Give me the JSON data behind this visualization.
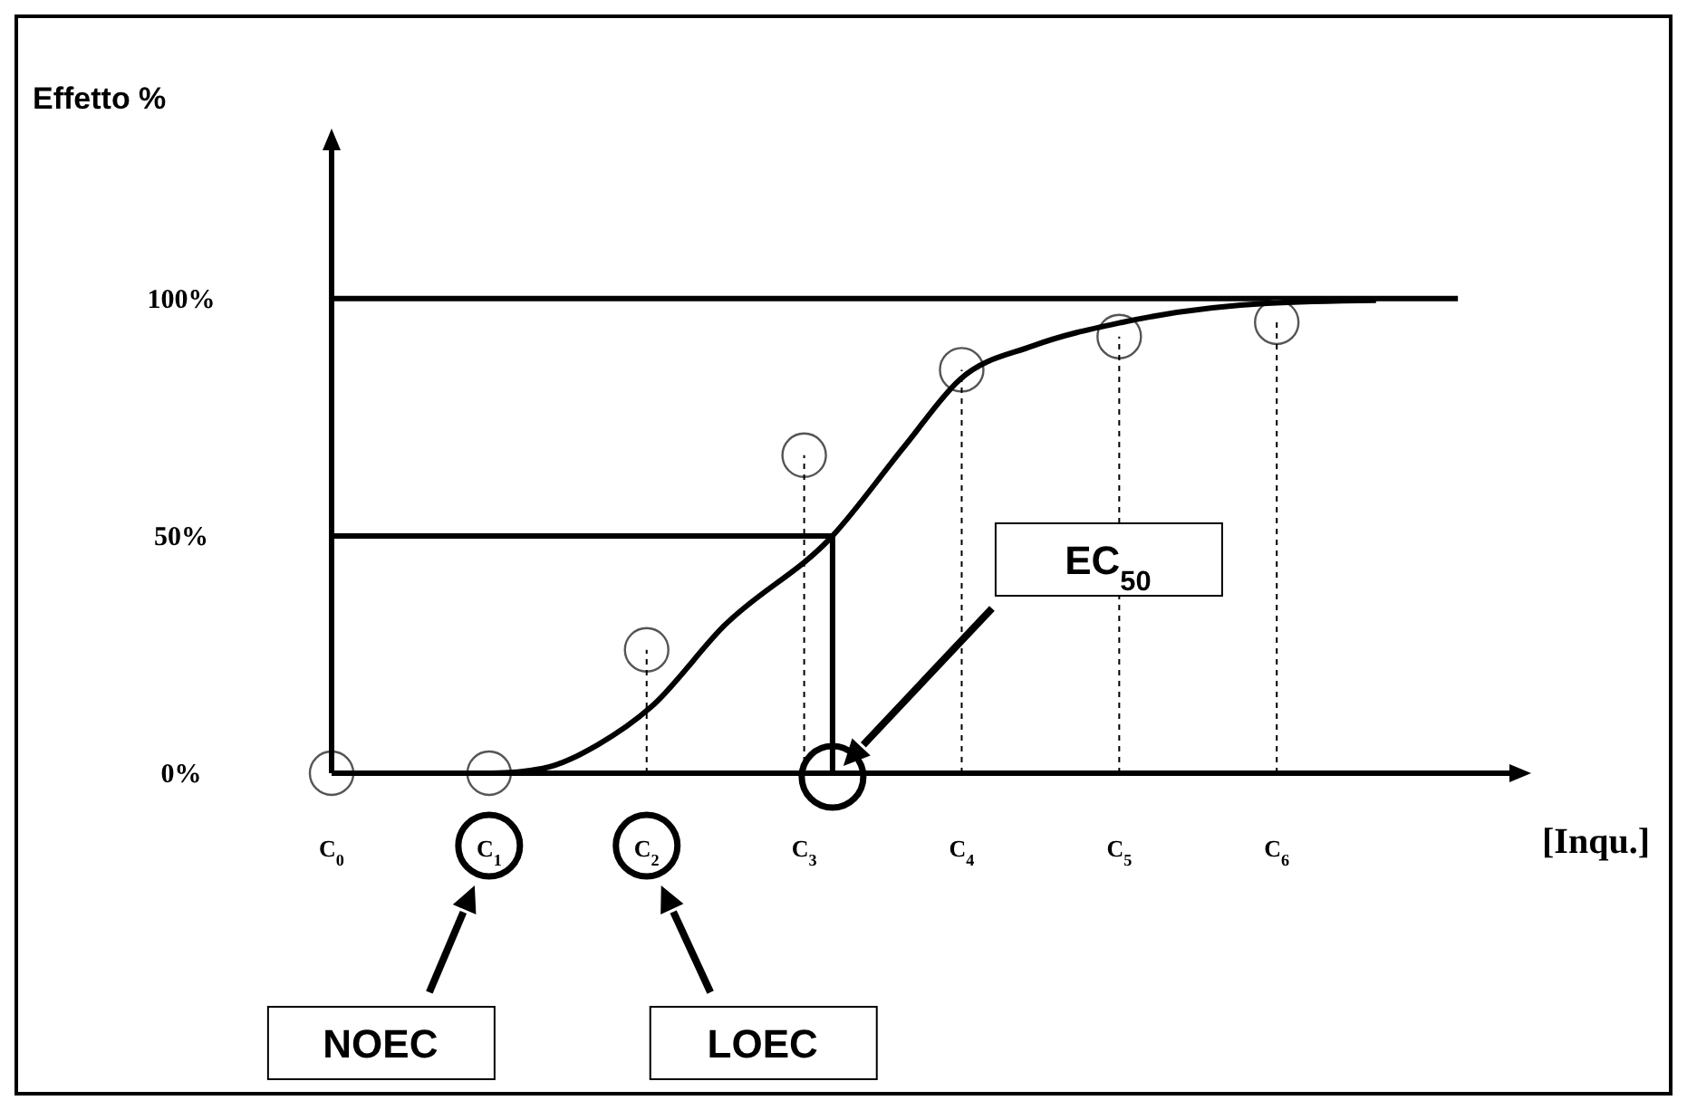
{
  "chart_data": {
    "type": "scatter",
    "ylabel": "Effetto %",
    "xlabel": "[Inqu.]",
    "xlim": [
      0,
      7.5
    ],
    "ylim": [
      0,
      132
    ],
    "xticks": [
      {
        "value": 0,
        "label": "C$_{0}$"
      },
      {
        "value": 1,
        "label": "C$_{1}$"
      },
      {
        "value": 2,
        "label": "C$_{2}$"
      },
      {
        "value": 3,
        "label": "C$_{3}$"
      },
      {
        "value": 4,
        "label": "C$_{4}$"
      },
      {
        "value": 5,
        "label": "C$_{5}$"
      },
      {
        "value": 6,
        "label": "C$_{6}$"
      }
    ],
    "yticks": [
      {
        "value": 0,
        "label": "0%"
      },
      {
        "value": 50,
        "label": "50%"
      },
      {
        "value": 100,
        "label": "100%"
      }
    ],
    "grid": false,
    "marker": "circle",
    "series": [
      {
        "type": "line",
        "marker": "none",
        "color": "#000000",
        "line_style": "dashed",
        "x": [
          2,
          2,
          null,
          3,
          3,
          null,
          4,
          4,
          null,
          5,
          5,
          null,
          6,
          6
        ],
        "values": [
          0,
          26,
          null,
          0,
          67,
          null,
          0,
          85,
          null,
          0,
          92,
          null,
          0,
          95
        ]
      },
      {
        "type": "line",
        "marker": "none",
        "color": "#000000",
        "x": [
          0,
          1.02,
          1.34,
          1.69,
          2.03,
          2.49,
          3.18,
          3.64,
          3.99,
          4.45,
          5.02,
          5.94,
          6.63
        ],
        "values": [
          0,
          0,
          1,
          6,
          14,
          31,
          50,
          69,
          83,
          90,
          95,
          99,
          99.6
        ]
      },
      {
        "type": "line",
        "marker": "none",
        "color": "#000000",
        "x": [
          0,
          3.18,
          3.18
        ],
        "values": [
          50,
          50,
          0
        ]
      },
      {
        "color": "#555555",
        "x": [
          0,
          1,
          2,
          3,
          4,
          5,
          6
        ],
        "values": [
          0,
          0,
          26,
          67,
          85,
          92,
          95
        ]
      }
    ],
    "ref_lines": [
      {
        "axis": "y",
        "value": 100,
        "label": null
      }
    ],
    "annotations": [
      "NOEC",
      "LOEC",
      "EC$_{50}$"
    ]
  }
}
